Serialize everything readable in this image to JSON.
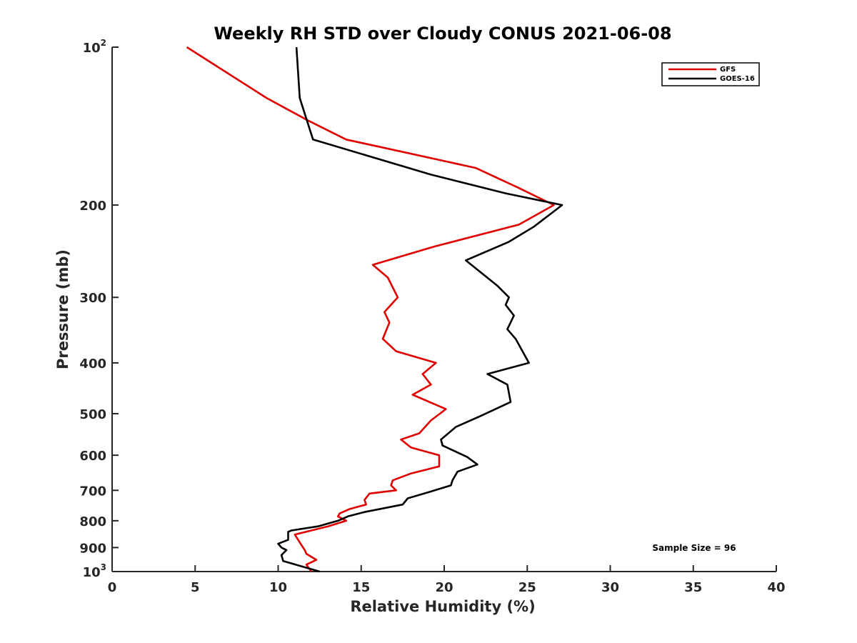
{
  "chart_data": {
    "type": "line",
    "title": "Weekly RH STD over Cloudy CONUS 2021-06-08",
    "xlabel": "Relative Humidity (%)",
    "ylabel": "Pressure (mb)",
    "xlim": [
      0,
      40
    ],
    "ylim": [
      100,
      1000
    ],
    "yscale": "log",
    "y_reversed": true,
    "grid": false,
    "legend_position": "top-right",
    "x_ticks": [
      "0",
      "5",
      "10",
      "15",
      "20",
      "25",
      "30",
      "35",
      "40"
    ],
    "y_ticks": [
      {
        "value": 100,
        "base": "10",
        "exp": "2",
        "text": ""
      },
      {
        "value": 200,
        "text": "200"
      },
      {
        "value": 300,
        "text": "300"
      },
      {
        "value": 400,
        "text": "400"
      },
      {
        "value": 500,
        "text": "500"
      },
      {
        "value": 600,
        "text": "600"
      },
      {
        "value": 700,
        "text": "700"
      },
      {
        "value": 800,
        "text": "800"
      },
      {
        "value": 900,
        "text": "900"
      },
      {
        "value": 1000,
        "base": "10",
        "exp": "3",
        "text": ""
      }
    ],
    "annotation": "Sample Size = 96",
    "series": [
      {
        "name": "GFS",
        "color": "#e00000",
        "points": [
          [
            4.5,
            100
          ],
          [
            9.3,
            125
          ],
          [
            11.8,
            138
          ],
          [
            14.1,
            150
          ],
          [
            21.9,
            170
          ],
          [
            24.4,
            185
          ],
          [
            26.6,
            200
          ],
          [
            24.5,
            218
          ],
          [
            19.4,
            240
          ],
          [
            15.7,
            260
          ],
          [
            16.6,
            275
          ],
          [
            17.2,
            300
          ],
          [
            16.4,
            320
          ],
          [
            16.7,
            335
          ],
          [
            16.3,
            360
          ],
          [
            17.1,
            380
          ],
          [
            19.5,
            400
          ],
          [
            18.7,
            420
          ],
          [
            19.2,
            440
          ],
          [
            18.1,
            460
          ],
          [
            20.1,
            490
          ],
          [
            19.2,
            515
          ],
          [
            18.5,
            545
          ],
          [
            17.4,
            560
          ],
          [
            18.0,
            580
          ],
          [
            19.7,
            600
          ],
          [
            19.7,
            630
          ],
          [
            18.0,
            650
          ],
          [
            16.9,
            670
          ],
          [
            16.8,
            685
          ],
          [
            17.1,
            700
          ],
          [
            15.5,
            710
          ],
          [
            15.2,
            730
          ],
          [
            15.3,
            745
          ],
          [
            14.3,
            760
          ],
          [
            13.7,
            775
          ],
          [
            13.6,
            785
          ],
          [
            14.1,
            800
          ],
          [
            13.0,
            820
          ],
          [
            11.0,
            850
          ],
          [
            11.2,
            870
          ],
          [
            11.4,
            890
          ],
          [
            11.6,
            910
          ],
          [
            11.7,
            925
          ],
          [
            12.3,
            950
          ],
          [
            11.7,
            970
          ],
          [
            12.0,
            1000
          ]
        ]
      },
      {
        "name": "GOES-16",
        "color": "#000000",
        "points": [
          [
            11.1,
            100
          ],
          [
            11.3,
            125
          ],
          [
            12.1,
            150
          ],
          [
            19.2,
            175
          ],
          [
            23.7,
            190
          ],
          [
            27.1,
            200
          ],
          [
            25.4,
            220
          ],
          [
            23.9,
            235
          ],
          [
            21.3,
            255
          ],
          [
            23.2,
            285
          ],
          [
            23.9,
            300
          ],
          [
            23.7,
            310
          ],
          [
            24.2,
            325
          ],
          [
            23.8,
            345
          ],
          [
            24.3,
            360
          ],
          [
            25.1,
            400
          ],
          [
            22.6,
            420
          ],
          [
            23.8,
            440
          ],
          [
            24.0,
            475
          ],
          [
            22.2,
            505
          ],
          [
            20.7,
            530
          ],
          [
            19.8,
            560
          ],
          [
            19.9,
            575
          ],
          [
            21.4,
            605
          ],
          [
            22.0,
            625
          ],
          [
            20.8,
            645
          ],
          [
            20.5,
            670
          ],
          [
            20.4,
            685
          ],
          [
            19.1,
            705
          ],
          [
            17.8,
            725
          ],
          [
            17.5,
            745
          ],
          [
            15.2,
            770
          ],
          [
            14.2,
            785
          ],
          [
            13.6,
            800
          ],
          [
            12.4,
            820
          ],
          [
            10.8,
            835
          ],
          [
            10.6,
            840
          ],
          [
            10.6,
            870
          ],
          [
            10.0,
            885
          ],
          [
            10.2,
            900
          ],
          [
            10.5,
            910
          ],
          [
            10.2,
            930
          ],
          [
            10.3,
            955
          ],
          [
            12.5,
            1000
          ]
        ]
      }
    ]
  }
}
